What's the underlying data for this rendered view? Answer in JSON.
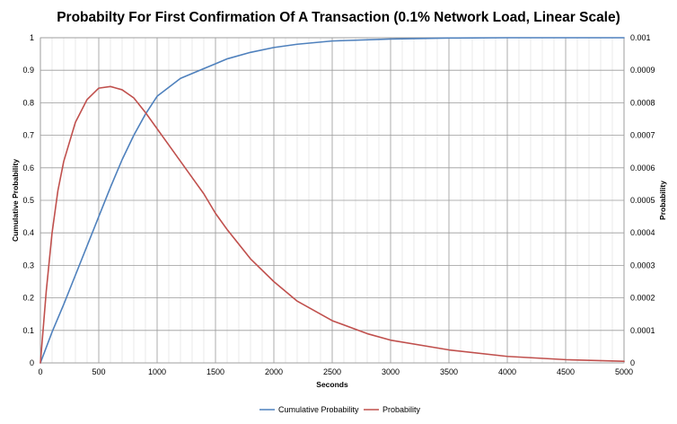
{
  "chart_data": {
    "type": "line",
    "title": "Probabilty For First Confirmation Of A Transaction (0.1% Network Load, Linear Scale)",
    "xlabel": "Seconds",
    "ylabel_left": "Cumulative Probability",
    "ylabel_right": "Probability",
    "xlim": [
      0,
      5000
    ],
    "ylim_left": [
      0,
      1
    ],
    "ylim_right": [
      0,
      0.001
    ],
    "x_ticks": [
      "0",
      "500",
      "1000",
      "1500",
      "2000",
      "2500",
      "3000",
      "3500",
      "4000",
      "4500",
      "5000"
    ],
    "y_left_ticks": [
      "0",
      "0.1",
      "0.2",
      "0.3",
      "0.4",
      "0.5",
      "0.6",
      "0.7",
      "0.8",
      "0.9",
      "1"
    ],
    "y_right_ticks": [
      "0",
      "0.0001",
      "0.0002",
      "0.0003",
      "0.0004",
      "0.0005",
      "0.0006",
      "0.0007",
      "0.0008",
      "0.0009",
      "0.001"
    ],
    "grid": true,
    "legend_position": "bottom",
    "series": [
      {
        "name": "Cumulative Probability",
        "axis": "left",
        "color": "#4f81bd",
        "x": [
          0,
          100,
          200,
          300,
          400,
          500,
          600,
          700,
          800,
          900,
          1000,
          1200,
          1400,
          1500,
          1600,
          1800,
          2000,
          2200,
          2500,
          3000,
          3500,
          4000,
          4500,
          5000
        ],
        "y": [
          0,
          0.095,
          0.18,
          0.27,
          0.36,
          0.45,
          0.54,
          0.625,
          0.7,
          0.765,
          0.82,
          0.875,
          0.905,
          0.92,
          0.935,
          0.955,
          0.97,
          0.98,
          0.99,
          0.996,
          0.999,
          1,
          1,
          1
        ]
      },
      {
        "name": "Probability",
        "axis": "right",
        "color": "#c0504d",
        "x": [
          0,
          50,
          100,
          150,
          200,
          300,
          400,
          500,
          600,
          650,
          700,
          800,
          900,
          1000,
          1100,
          1200,
          1300,
          1400,
          1500,
          1600,
          1800,
          2000,
          2200,
          2500,
          2800,
          3000,
          3500,
          4000,
          4500,
          5000
        ],
        "y": [
          0,
          0.00022,
          0.0004,
          0.00053,
          0.00062,
          0.00074,
          0.00081,
          0.000845,
          0.00085,
          0.000845,
          0.00084,
          0.000815,
          0.00077,
          0.00072,
          0.00067,
          0.00062,
          0.00057,
          0.00052,
          0.00046,
          0.00041,
          0.00032,
          0.00025,
          0.00019,
          0.00013,
          9e-05,
          7e-05,
          4e-05,
          2e-05,
          1e-05,
          5e-06
        ]
      }
    ]
  }
}
